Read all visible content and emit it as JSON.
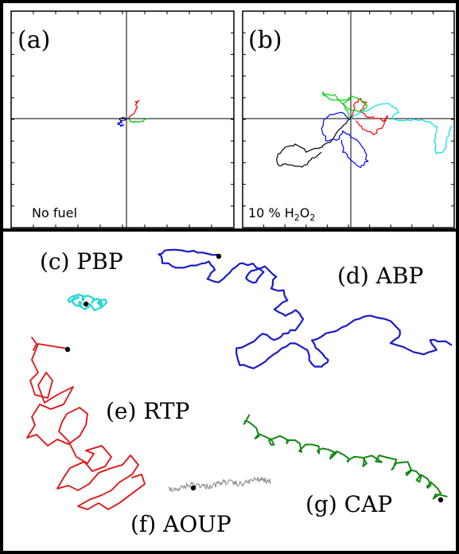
{
  "top_panels": [
    {
      "label": "(a)",
      "caption": "No fuel",
      "trajectory_colors": [
        "#ff0000",
        "#00cc00",
        "#0000ff",
        "#000000"
      ]
    },
    {
      "label": "(b)",
      "caption_prefix": "10 % H",
      "caption_sub1": "2",
      "caption_mid": "O",
      "caption_sub2": "2",
      "trajectory_colors": [
        "#ff0000",
        "#00cc00",
        "#0000ff",
        "#000000",
        "#00e0e0"
      ]
    }
  ],
  "bottom_panel": {
    "trajectories": [
      {
        "label": "(c) PBP",
        "color": "#22d6d6"
      },
      {
        "label": "(d) ABP",
        "color": "#1a1acc"
      },
      {
        "label": "(e) RTP",
        "color": "#e01010"
      },
      {
        "label": "(f) AOUP",
        "color": "#8c8c8c"
      },
      {
        "label": "(g) CAP",
        "color": "#128812"
      }
    ],
    "start_marker_color": "#000000"
  }
}
